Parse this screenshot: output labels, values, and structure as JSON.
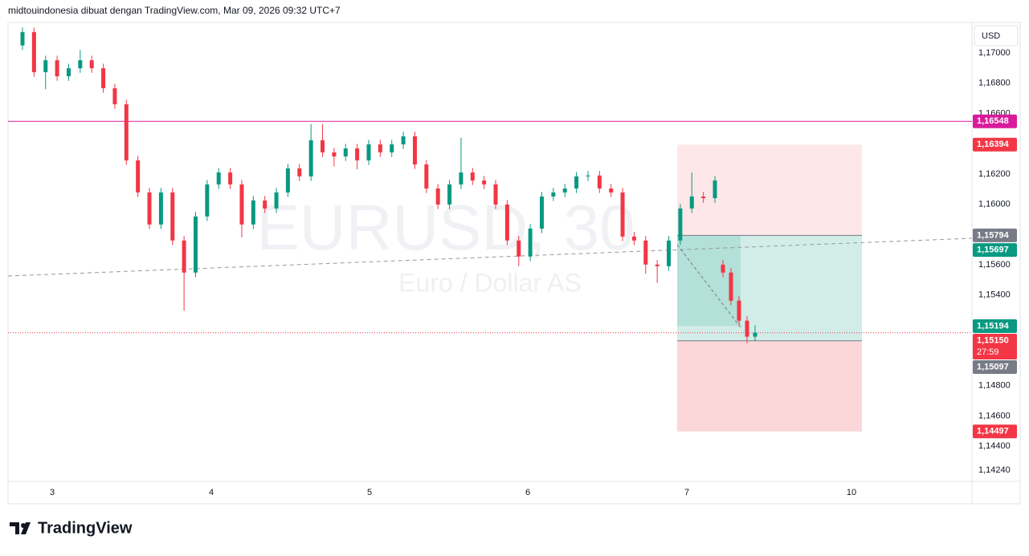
{
  "header": "midtouindonesia dibuat dengan TradingView.com, Mar 09, 2026 09:32 UTC+7",
  "currency": "USD",
  "footer": "TradingView",
  "chart_data": {
    "type": "candlestick",
    "watermark": "EURUSD, 30",
    "watermark_subtitle": "Euro / Dollar AS",
    "up_color": "#089981",
    "down_color": "#f23645",
    "open": [
      1.1705,
      1.17138,
      1.16873,
      1.16952,
      1.16846,
      1.16899,
      1.16952,
      1.16899,
      1.16767,
      1.16661,
      1.1629,
      1.16078,
      1.15866,
      1.16078,
      1.1576,
      1.15548,
      1.15919,
      1.16131,
      1.1621,
      1.16131,
      1.15866,
      1.16025,
      1.15972,
      1.16078,
      1.16237,
      1.16184,
      1.16423,
      1.16343,
      1.16316,
      1.16369,
      1.1629,
      1.16396,
      1.16343,
      1.16396,
      1.16449,
      1.16263,
      1.16104,
      1.15998,
      1.16131,
      1.1621,
      1.16157,
      1.16131,
      1.15998,
      1.1576,
      1.15654,
      1.15839,
      1.16051,
      1.16078,
      1.16104,
      1.16184,
      1.1619,
      1.16104,
      1.16078,
      1.15786,
      1.1576,
      1.15601,
      1.1559,
      1.1576,
      1.15972,
      1.16051,
      1.1604,
      1.156,
      1.15548,
      1.15362,
      1.1523,
      1.15124
    ],
    "high": [
      1.17168,
      1.17168,
      1.16982,
      1.16982,
      1.16929,
      1.1702,
      1.16982,
      1.16929,
      1.16797,
      1.16691,
      1.1632,
      1.16108,
      1.16108,
      1.16108,
      1.1579,
      1.15949,
      1.16161,
      1.1624,
      1.1624,
      1.16161,
      1.16055,
      1.16055,
      1.16108,
      1.16267,
      1.16267,
      1.1653,
      1.1653,
      1.16373,
      1.16399,
      1.16399,
      1.16426,
      1.16426,
      1.16426,
      1.16479,
      1.16479,
      1.16293,
      1.16134,
      1.16161,
      1.1644,
      1.1624,
      1.16187,
      1.16161,
      1.16028,
      1.1579,
      1.15869,
      1.16081,
      1.16108,
      1.16134,
      1.16214,
      1.1622,
      1.1622,
      1.16134,
      1.16108,
      1.15816,
      1.1579,
      1.15631,
      1.1579,
      1.16002,
      1.1621,
      1.16081,
      1.16187,
      1.1563,
      1.15578,
      1.15392,
      1.1526,
      1.152
    ],
    "low": [
      1.1702,
      1.16843,
      1.1676,
      1.16816,
      1.16816,
      1.16869,
      1.16869,
      1.16737,
      1.16631,
      1.1626,
      1.16048,
      1.15836,
      1.15836,
      1.1573,
      1.15295,
      1.15518,
      1.15889,
      1.16101,
      1.16101,
      1.1578,
      1.15836,
      1.15942,
      1.15942,
      1.16048,
      1.16154,
      1.16154,
      1.16313,
      1.1625,
      1.16286,
      1.1623,
      1.1626,
      1.16313,
      1.16313,
      1.16366,
      1.16233,
      1.16074,
      1.15968,
      1.15968,
      1.16101,
      1.16127,
      1.16101,
      1.15968,
      1.1573,
      1.1559,
      1.15624,
      1.15809,
      1.16021,
      1.16048,
      1.16074,
      1.16154,
      1.16074,
      1.16048,
      1.15756,
      1.1573,
      1.1554,
      1.1548,
      1.1556,
      1.1573,
      1.15942,
      1.1601,
      1.1601,
      1.15518,
      1.15332,
      1.152,
      1.1508,
      1.15094
    ],
    "close": [
      1.17138,
      1.16873,
      1.16952,
      1.16846,
      1.16899,
      1.16952,
      1.16899,
      1.16767,
      1.16661,
      1.1629,
      1.16078,
      1.15866,
      1.16078,
      1.1576,
      1.15548,
      1.15919,
      1.16131,
      1.1621,
      1.16131,
      1.15866,
      1.16025,
      1.15972,
      1.16078,
      1.16237,
      1.16184,
      1.16423,
      1.16343,
      1.16316,
      1.16369,
      1.1629,
      1.16396,
      1.16343,
      1.16396,
      1.16449,
      1.16263,
      1.16104,
      1.15998,
      1.16131,
      1.1621,
      1.16157,
      1.16131,
      1.15998,
      1.1576,
      1.15654,
      1.15839,
      1.16051,
      1.16078,
      1.16104,
      1.16184,
      1.1619,
      1.16104,
      1.16078,
      1.15786,
      1.1576,
      1.15601,
      1.1559,
      1.1576,
      1.15972,
      1.16051,
      1.1604,
      1.16157,
      1.15548,
      1.15362,
      1.1523,
      1.15124,
      1.1515
    ],
    "x_labels": [
      "3",
      "4",
      "5",
      "6",
      "7",
      "10"
    ],
    "ylim": [
      1.14167,
      1.17202
    ],
    "yticks": [
      {
        "value": 1.17,
        "label": "1,17000"
      },
      {
        "value": 1.168,
        "label": "1,16800"
      },
      {
        "value": 1.166,
        "label": "1,16600"
      },
      {
        "value": 1.162,
        "label": "1,16200"
      },
      {
        "value": 1.16,
        "label": "1,16000"
      },
      {
        "value": 1.156,
        "label": "1,15600"
      },
      {
        "value": 1.154,
        "label": "1,15400"
      },
      {
        "value": 1.148,
        "label": "1,14800"
      },
      {
        "value": 1.146,
        "label": "1,14600"
      },
      {
        "value": 1.144,
        "label": "1,14400"
      },
      {
        "value": 1.1424,
        "label": "1,14240"
      }
    ],
    "price_labels": [
      {
        "value": 1.16548,
        "label": "1,16548",
        "color": "#d81b9a"
      },
      {
        "value": 1.16394,
        "label": "1,16394",
        "color": "#f23645"
      },
      {
        "value": 1.15794,
        "label": "1,15794",
        "color": "#787b86"
      },
      {
        "value": 1.15697,
        "label": "1,15697",
        "color": "#089981"
      },
      {
        "value": 1.15194,
        "label": "1,15194",
        "color": "#089981"
      },
      {
        "value": 1.1515,
        "label": "1,15150",
        "color": "#f23645",
        "countdown": "27:59"
      },
      {
        "value": 1.15097,
        "label": "1,15097",
        "color": "#787b86"
      },
      {
        "value": 1.14497,
        "label": "1,14497",
        "color": "#f23645"
      }
    ]
  }
}
